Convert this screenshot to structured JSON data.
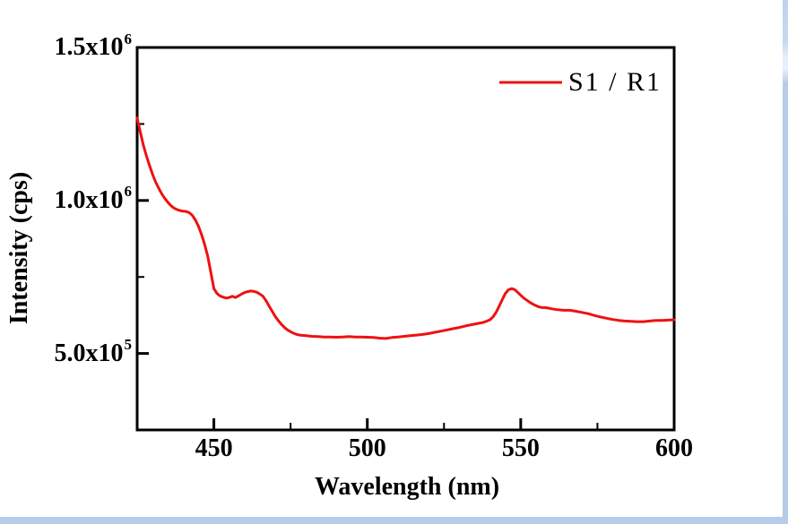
{
  "window": {
    "border_color": "#b7cce8"
  },
  "chart_data": {
    "type": "line",
    "title": "",
    "xlabel": "Wavelength (nm)",
    "ylabel": "Intensity (cps)",
    "xlim": [
      425,
      600
    ],
    "ylim": [
      250000,
      1500000
    ],
    "grid": false,
    "frame": "full-box",
    "tick_direction": "in",
    "x_major_ticks": [
      450,
      500,
      550,
      600
    ],
    "x_minor_ticks": [
      475,
      525,
      575
    ],
    "x_tick_labels": [
      "450",
      "500",
      "550",
      "600"
    ],
    "y_major_ticks": [
      500000,
      1000000,
      1500000
    ],
    "y_minor_ticks": [
      750000,
      1250000
    ],
    "y_tick_labels": [
      {
        "mantissa": "5.0x10",
        "exp": "5"
      },
      {
        "mantissa": "1.0x10",
        "exp": "6"
      },
      {
        "mantissa": "1.5x10",
        "exp": "6"
      }
    ],
    "legend": {
      "position": "top-right",
      "entries": [
        {
          "label": "S1 / R1",
          "color": "#ee1111",
          "marker": "line"
        }
      ]
    },
    "series": [
      {
        "name": "S1 / R1",
        "color": "#ee1111",
        "points": [
          [
            425,
            1270000
          ],
          [
            426,
            1225000
          ],
          [
            427,
            1182000
          ],
          [
            428,
            1146000
          ],
          [
            429,
            1115000
          ],
          [
            430,
            1086000
          ],
          [
            431,
            1061000
          ],
          [
            432,
            1040000
          ],
          [
            433,
            1022000
          ],
          [
            434,
            1007000
          ],
          [
            435,
            994000
          ],
          [
            436,
            983000
          ],
          [
            437,
            975000
          ],
          [
            438,
            970000
          ],
          [
            439,
            967000
          ],
          [
            440,
            965000
          ],
          [
            441,
            964000
          ],
          [
            442,
            960000
          ],
          [
            443,
            951000
          ],
          [
            444,
            936000
          ],
          [
            445,
            915000
          ],
          [
            446,
            888000
          ],
          [
            447,
            856000
          ],
          [
            448,
            818000
          ],
          [
            449,
            766000
          ],
          [
            450,
            712000
          ],
          [
            451,
            696000
          ],
          [
            452,
            688000
          ],
          [
            453,
            684000
          ],
          [
            454,
            681000
          ],
          [
            455,
            683000
          ],
          [
            456,
            687000
          ],
          [
            457,
            683000
          ],
          [
            458,
            688000
          ],
          [
            459,
            694000
          ],
          [
            460,
            699000
          ],
          [
            461,
            702000
          ],
          [
            462,
            704000
          ],
          [
            463,
            703000
          ],
          [
            464,
            700000
          ],
          [
            465,
            694000
          ],
          [
            466,
            687000
          ],
          [
            467,
            672000
          ],
          [
            468,
            655000
          ],
          [
            469,
            638000
          ],
          [
            470,
            621000
          ],
          [
            471,
            607000
          ],
          [
            472,
            595000
          ],
          [
            473,
            585000
          ],
          [
            474,
            577000
          ],
          [
            475,
            571000
          ],
          [
            476,
            566000
          ],
          [
            477,
            562000
          ],
          [
            478,
            560000
          ],
          [
            480,
            558000
          ],
          [
            482,
            556000
          ],
          [
            484,
            555000
          ],
          [
            486,
            554000
          ],
          [
            488,
            554000
          ],
          [
            490,
            553000
          ],
          [
            492,
            554000
          ],
          [
            494,
            555000
          ],
          [
            496,
            554000
          ],
          [
            498,
            554000
          ],
          [
            500,
            553000
          ],
          [
            502,
            552000
          ],
          [
            504,
            550000
          ],
          [
            506,
            549000
          ],
          [
            508,
            552000
          ],
          [
            510,
            554000
          ],
          [
            512,
            556000
          ],
          [
            514,
            558000
          ],
          [
            516,
            560000
          ],
          [
            518,
            562000
          ],
          [
            520,
            565000
          ],
          [
            522,
            569000
          ],
          [
            524,
            573000
          ],
          [
            526,
            577000
          ],
          [
            528,
            581000
          ],
          [
            530,
            585000
          ],
          [
            532,
            590000
          ],
          [
            534,
            594000
          ],
          [
            536,
            598000
          ],
          [
            538,
            602000
          ],
          [
            540,
            610000
          ],
          [
            541,
            620000
          ],
          [
            542,
            635000
          ],
          [
            543,
            655000
          ],
          [
            544,
            676000
          ],
          [
            545,
            696000
          ],
          [
            546,
            708000
          ],
          [
            547,
            712000
          ],
          [
            548,
            709000
          ],
          [
            549,
            700000
          ],
          [
            550,
            690000
          ],
          [
            551,
            681000
          ],
          [
            552,
            674000
          ],
          [
            553,
            667000
          ],
          [
            554,
            661000
          ],
          [
            555,
            656000
          ],
          [
            556,
            652000
          ],
          [
            557,
            650000
          ],
          [
            558,
            650000
          ],
          [
            559,
            648000
          ],
          [
            560,
            646000
          ],
          [
            562,
            643000
          ],
          [
            564,
            641000
          ],
          [
            566,
            641000
          ],
          [
            568,
            638000
          ],
          [
            570,
            634000
          ],
          [
            572,
            630000
          ],
          [
            574,
            624000
          ],
          [
            576,
            619000
          ],
          [
            578,
            615000
          ],
          [
            580,
            611000
          ],
          [
            582,
            608000
          ],
          [
            584,
            606000
          ],
          [
            586,
            605000
          ],
          [
            588,
            604000
          ],
          [
            590,
            604000
          ],
          [
            592,
            606000
          ],
          [
            594,
            608000
          ],
          [
            596,
            608000
          ],
          [
            598,
            609000
          ],
          [
            600,
            610000
          ]
        ]
      }
    ]
  }
}
